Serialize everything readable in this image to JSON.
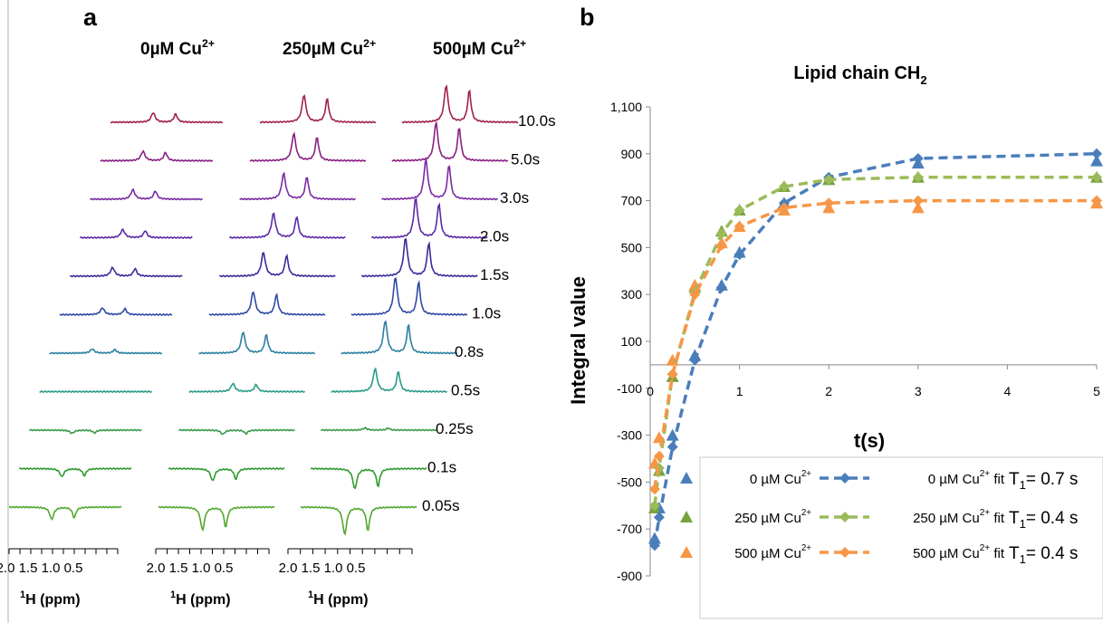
{
  "panels": {
    "a": "a",
    "b": "b"
  },
  "left": {
    "columns": [
      {
        "label": "0µM Cu",
        "sup": "2+"
      },
      {
        "label": "250µM Cu",
        "sup": "2+"
      },
      {
        "label": "500µM Cu",
        "sup": "2+"
      }
    ],
    "delays": [
      "10.0s",
      "5.0s",
      "3.0s",
      "2.0s",
      "1.5s",
      "1.0s",
      "0.8s",
      "0.5s",
      "0.25s",
      "0.1s",
      "0.05s"
    ],
    "delay_colors": [
      "#a0204e",
      "#8a1f83",
      "#7a2aa3",
      "#5a2aa8",
      "#3a2a9c",
      "#2f4aa2",
      "#2b7fa0",
      "#2a9a88",
      "#3a9a4a",
      "#2f9a2f",
      "#52a82e"
    ],
    "axis_ticks": [
      "2.0",
      "1.5",
      "1.0",
      "0.5"
    ],
    "axis_title": "H (ppm)",
    "axis_title_sup": "1",
    "intensities_by_delay": {
      "col0": [
        0.35,
        0.35,
        0.35,
        0.3,
        0.32,
        0.25,
        0.15,
        0.0,
        -0.12,
        -0.3,
        -0.45
      ],
      "col1": [
        1.0,
        1.0,
        0.95,
        0.9,
        0.88,
        0.85,
        0.78,
        0.3,
        -0.15,
        -0.45,
        -0.85
      ],
      "col2": [
        1.35,
        1.4,
        1.45,
        1.45,
        1.4,
        1.38,
        1.2,
        0.85,
        0.08,
        -0.75,
        -1.0
      ]
    }
  },
  "chart_data": {
    "type": "scatter",
    "title": "Lipid chain CH",
    "title_sub": "2",
    "xlabel": "t(s)",
    "ylabel": "Integral value",
    "xlim": [
      0,
      5
    ],
    "ylim": [
      -900,
      1100
    ],
    "xticks": [
      "0",
      "1",
      "2",
      "3",
      "4",
      "5"
    ],
    "yticks": [
      "1,100",
      "900",
      "700",
      "500",
      "300",
      "100",
      "-100",
      "-300",
      "-500",
      "-700",
      "-900"
    ],
    "x": [
      0.05,
      0.1,
      0.25,
      0.5,
      0.8,
      1.0,
      1.5,
      2.0,
      3.0,
      5.0
    ],
    "series": [
      {
        "name": "0 µM Cu",
        "sup": "2+",
        "kind": "measured",
        "marker": "triangle",
        "color": "#4a7ebb",
        "values": [
          -740,
          -610,
          -300,
          40,
          340,
          480,
          690,
          790,
          860,
          870
        ]
      },
      {
        "name": "250 µM Cu",
        "sup": "2+",
        "kind": "measured",
        "marker": "triangle",
        "color": "#77a33c",
        "values": [
          -610,
          -450,
          -50,
          330,
          570,
          660,
          760,
          790,
          800,
          800
        ]
      },
      {
        "name": "500 µM Cu",
        "sup": "2+",
        "kind": "measured",
        "marker": "triangle",
        "color": "#f79646",
        "values": [
          -420,
          -310,
          20,
          340,
          520,
          590,
          660,
          670,
          670,
          690
        ]
      },
      {
        "name": "0 µM Cu",
        "sup": "2+",
        "suffix": " fit",
        "kind": "fit",
        "marker": "diamond",
        "color": "#4a7ebb",
        "values": [
          -770,
          -650,
          -350,
          20,
          330,
          470,
          690,
          800,
          880,
          900
        ]
      },
      {
        "name": "250 µM Cu",
        "sup": "2+",
        "suffix": " fit",
        "kind": "fit",
        "marker": "diamond",
        "color": "#9bbb59",
        "values": [
          -600,
          -440,
          -40,
          310,
          560,
          660,
          760,
          790,
          800,
          800
        ]
      },
      {
        "name": "500 µM Cu",
        "sup": "2+",
        "suffix": " fit",
        "kind": "fit",
        "marker": "diamond",
        "color": "#f79646",
        "values": [
          -530,
          -390,
          -40,
          300,
          510,
          590,
          670,
          690,
          700,
          700
        ]
      }
    ],
    "t1_labels": [
      {
        "prefix": "T",
        "sub": "1",
        "text": "= 0.7 s"
      },
      {
        "prefix": "T",
        "sub": "1",
        "text": "= 0.4 s"
      },
      {
        "prefix": "T",
        "sub": "1",
        "text": "= 0.4 s"
      }
    ],
    "grid": false,
    "legend_position": "bottom"
  }
}
